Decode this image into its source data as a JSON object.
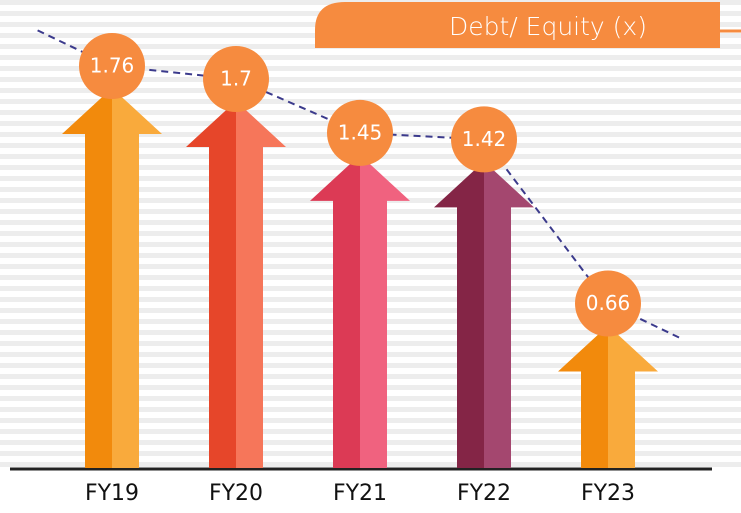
{
  "chart_data": {
    "type": "bar",
    "title": "Debt/ Equity (x)",
    "categories": [
      "FY19",
      "FY20",
      "FY21",
      "FY22",
      "FY23"
    ],
    "values": [
      1.76,
      1.7,
      1.45,
      1.42,
      0.66
    ],
    "colors": [
      [
        "#f28a0c",
        "#f9aa3c"
      ],
      [
        "#e6462a",
        "#f6765a"
      ],
      [
        "#dc3a55",
        "#f0627f"
      ],
      [
        "#842546",
        "#a4476f"
      ],
      [
        "#f28a0c",
        "#f9aa3c"
      ]
    ],
    "label_color": "#f68b3f",
    "trend_line": true
  }
}
